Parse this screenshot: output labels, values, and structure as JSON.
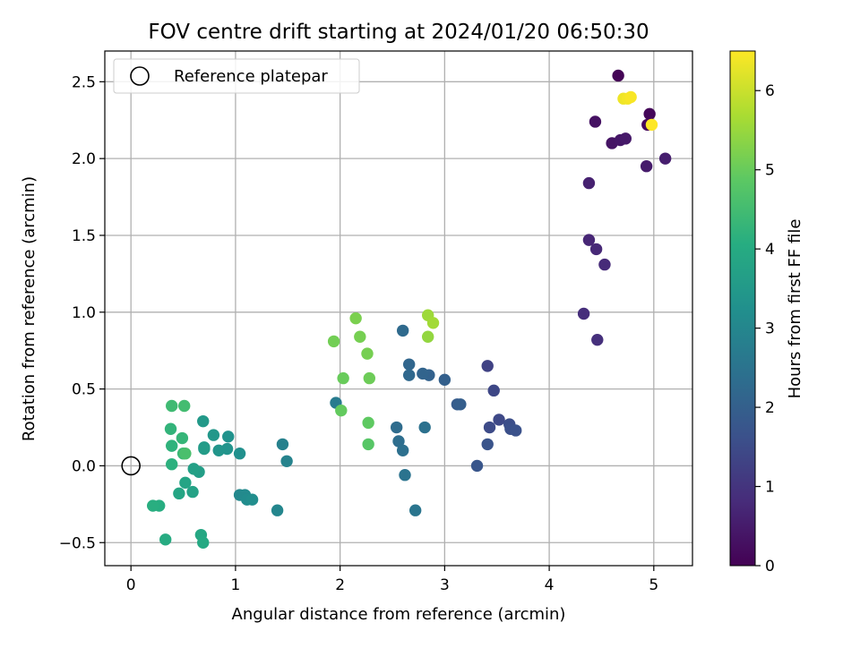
{
  "chart_data": {
    "type": "scatter",
    "title": "FOV centre drift starting at 2024/01/20 06:50:30",
    "xlabel": "Angular distance from reference (arcmin)",
    "ylabel": "Rotation from reference (arcmin)",
    "xlim": [
      -0.25,
      5.37
    ],
    "ylim": [
      -0.65,
      2.7
    ],
    "xticks": [
      0,
      1,
      2,
      3,
      4,
      5
    ],
    "xtick_labels": [
      "0",
      "1",
      "2",
      "3",
      "4",
      "5"
    ],
    "yticks": [
      -0.5,
      0.0,
      0.5,
      1.0,
      1.5,
      2.0,
      2.5
    ],
    "ytick_labels": [
      "−0.5",
      "0.0",
      "0.5",
      "1.0",
      "1.5",
      "2.0",
      "2.5"
    ],
    "grid": true,
    "legend": {
      "position": "top-left",
      "label": "Reference platepar",
      "marker": "open-circle"
    },
    "reference_point": {
      "x": 0.0,
      "y": 0.0
    },
    "colorbar": {
      "label": "Hours from first FF file",
      "colormap": "viridis",
      "range": [
        0,
        6.5
      ],
      "ticks": [
        0,
        1,
        2,
        3,
        4,
        5,
        6
      ],
      "tick_labels": [
        "0",
        "1",
        "2",
        "3",
        "4",
        "5",
        "6"
      ]
    },
    "points": [
      {
        "x": 4.66,
        "y": 2.54,
        "c": 0.05
      },
      {
        "x": 4.96,
        "y": 2.29,
        "c": 0.1
      },
      {
        "x": 4.94,
        "y": 2.22,
        "c": 0.15
      },
      {
        "x": 4.44,
        "y": 2.24,
        "c": 0.3
      },
      {
        "x": 4.6,
        "y": 2.1,
        "c": 0.35
      },
      {
        "x": 4.68,
        "y": 2.12,
        "c": 0.4
      },
      {
        "x": 4.73,
        "y": 2.13,
        "c": 0.45
      },
      {
        "x": 4.93,
        "y": 1.95,
        "c": 0.5
      },
      {
        "x": 5.11,
        "y": 2.0,
        "c": 0.55
      },
      {
        "x": 4.38,
        "y": 1.84,
        "c": 0.6
      },
      {
        "x": 4.38,
        "y": 1.47,
        "c": 0.7
      },
      {
        "x": 4.45,
        "y": 1.41,
        "c": 0.75
      },
      {
        "x": 4.53,
        "y": 1.31,
        "c": 0.8
      },
      {
        "x": 4.33,
        "y": 0.99,
        "c": 0.85
      },
      {
        "x": 4.46,
        "y": 0.82,
        "c": 0.9
      },
      {
        "x": 3.41,
        "y": 0.65,
        "c": 1.3
      },
      {
        "x": 3.47,
        "y": 0.49,
        "c": 1.4
      },
      {
        "x": 3.52,
        "y": 0.3,
        "c": 1.45
      },
      {
        "x": 3.43,
        "y": 0.25,
        "c": 1.5
      },
      {
        "x": 3.62,
        "y": 0.27,
        "c": 1.55
      },
      {
        "x": 3.63,
        "y": 0.24,
        "c": 1.6
      },
      {
        "x": 3.68,
        "y": 0.23,
        "c": 1.65
      },
      {
        "x": 3.41,
        "y": 0.14,
        "c": 1.7
      },
      {
        "x": 3.31,
        "y": 0.0,
        "c": 1.75
      },
      {
        "x": 3.12,
        "y": 0.4,
        "c": 1.9
      },
      {
        "x": 3.15,
        "y": 0.4,
        "c": 1.95
      },
      {
        "x": 3.0,
        "y": 0.56,
        "c": 2.0
      },
      {
        "x": 2.85,
        "y": 0.59,
        "c": 2.05
      },
      {
        "x": 2.79,
        "y": 0.6,
        "c": 2.1
      },
      {
        "x": 2.66,
        "y": 0.66,
        "c": 2.15
      },
      {
        "x": 2.66,
        "y": 0.59,
        "c": 2.2
      },
      {
        "x": 2.6,
        "y": 0.88,
        "c": 2.25
      },
      {
        "x": 2.54,
        "y": 0.25,
        "c": 2.3
      },
      {
        "x": 2.56,
        "y": 0.16,
        "c": 2.35
      },
      {
        "x": 2.6,
        "y": 0.1,
        "c": 2.4
      },
      {
        "x": 2.81,
        "y": 0.25,
        "c": 2.45
      },
      {
        "x": 2.62,
        "y": -0.06,
        "c": 2.5
      },
      {
        "x": 2.72,
        "y": -0.29,
        "c": 2.55
      },
      {
        "x": 1.96,
        "y": 0.41,
        "c": 2.7
      },
      {
        "x": 1.45,
        "y": 0.14,
        "c": 2.85
      },
      {
        "x": 1.49,
        "y": 0.03,
        "c": 2.9
      },
      {
        "x": 1.4,
        "y": -0.29,
        "c": 3.0
      },
      {
        "x": 1.04,
        "y": -0.19,
        "c": 3.05
      },
      {
        "x": 1.09,
        "y": -0.19,
        "c": 3.1
      },
      {
        "x": 1.11,
        "y": -0.22,
        "c": 3.15
      },
      {
        "x": 1.16,
        "y": -0.22,
        "c": 3.2
      },
      {
        "x": 1.04,
        "y": 0.08,
        "c": 3.25
      },
      {
        "x": 0.93,
        "y": 0.19,
        "c": 3.3
      },
      {
        "x": 0.92,
        "y": 0.11,
        "c": 3.35
      },
      {
        "x": 0.84,
        "y": 0.1,
        "c": 3.4
      },
      {
        "x": 0.79,
        "y": 0.2,
        "c": 3.45
      },
      {
        "x": 0.69,
        "y": 0.29,
        "c": 3.5
      },
      {
        "x": 0.7,
        "y": 0.12,
        "c": 3.55
      },
      {
        "x": 0.7,
        "y": 0.11,
        "c": 3.6
      },
      {
        "x": 0.65,
        "y": -0.04,
        "c": 3.65
      },
      {
        "x": 0.6,
        "y": -0.02,
        "c": 3.7
      },
      {
        "x": 0.59,
        "y": -0.17,
        "c": 3.75
      },
      {
        "x": 0.52,
        "y": -0.11,
        "c": 3.8
      },
      {
        "x": 0.46,
        "y": -0.18,
        "c": 3.85
      },
      {
        "x": 0.67,
        "y": -0.45,
        "c": 3.9
      },
      {
        "x": 0.69,
        "y": -0.5,
        "c": 3.95
      },
      {
        "x": 0.33,
        "y": -0.48,
        "c": 4.0
      },
      {
        "x": 0.27,
        "y": -0.26,
        "c": 4.05
      },
      {
        "x": 0.21,
        "y": -0.26,
        "c": 4.1
      },
      {
        "x": 0.39,
        "y": 0.01,
        "c": 4.15
      },
      {
        "x": 0.39,
        "y": 0.13,
        "c": 4.2
      },
      {
        "x": 0.38,
        "y": 0.24,
        "c": 4.25
      },
      {
        "x": 0.49,
        "y": 0.18,
        "c": 4.3
      },
      {
        "x": 0.5,
        "y": 0.08,
        "c": 4.35
      },
      {
        "x": 0.39,
        "y": 0.39,
        "c": 4.45
      },
      {
        "x": 0.51,
        "y": 0.39,
        "c": 4.5
      },
      {
        "x": 0.52,
        "y": 0.08,
        "c": 4.6
      },
      {
        "x": 2.27,
        "y": 0.14,
        "c": 4.8
      },
      {
        "x": 2.27,
        "y": 0.28,
        "c": 4.9
      },
      {
        "x": 2.01,
        "y": 0.36,
        "c": 4.95
      },
      {
        "x": 2.03,
        "y": 0.57,
        "c": 5.0
      },
      {
        "x": 2.28,
        "y": 0.57,
        "c": 5.05
      },
      {
        "x": 1.94,
        "y": 0.81,
        "c": 5.1
      },
      {
        "x": 2.19,
        "y": 0.84,
        "c": 5.15
      },
      {
        "x": 2.26,
        "y": 0.73,
        "c": 5.15
      },
      {
        "x": 2.15,
        "y": 0.96,
        "c": 5.2
      },
      {
        "x": 2.84,
        "y": 0.84,
        "c": 5.45
      },
      {
        "x": 2.84,
        "y": 0.98,
        "c": 5.55
      },
      {
        "x": 2.89,
        "y": 0.93,
        "c": 5.6
      },
      {
        "x": 4.71,
        "y": 2.39,
        "c": 6.35
      },
      {
        "x": 4.75,
        "y": 2.39,
        "c": 6.4
      },
      {
        "x": 4.78,
        "y": 2.4,
        "c": 6.45
      },
      {
        "x": 4.98,
        "y": 2.22,
        "c": 6.5
      }
    ]
  }
}
